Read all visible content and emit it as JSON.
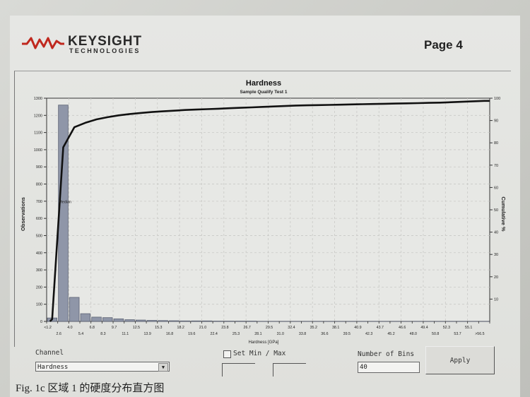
{
  "header": {
    "logo_main": "KEYSIGHT",
    "logo_sub": "TECHNOLOGIES",
    "page": "Page 4"
  },
  "colors": {
    "bar": "#8f96a8",
    "bar_dark": "#5c6273",
    "curve": "#111111",
    "grid": "#c9c9c6",
    "logo_red": "#c0281e"
  },
  "chart_data": {
    "type": "bar",
    "title": "Hardness",
    "subtitle": "Sample Qualify Test 1",
    "xlabel": "Hardness [GPa]",
    "ylabel": "Observations",
    "y2label": "Cumulative %",
    "ylim": [
      0,
      1300
    ],
    "y2lim": [
      0,
      100
    ],
    "yticks": [
      0,
      100,
      200,
      300,
      400,
      500,
      600,
      700,
      800,
      900,
      1000,
      1100,
      1200,
      1300
    ],
    "y2ticks": [
      10,
      20,
      30,
      40,
      50,
      60,
      70,
      80,
      90,
      100
    ],
    "xticks_upper": [
      "<1.2",
      "4.0",
      "6.8",
      "9.7",
      "12.5",
      "15.3",
      "18.2",
      "21.0",
      "23.8",
      "26.7",
      "29.5",
      "32.4",
      "35.2",
      "38.1",
      "40.9",
      "43.7",
      "46.6",
      "49.4",
      "52.3",
      "55.1"
    ],
    "xticks_lower": [
      "2.6",
      "5.4",
      "8.3",
      "11.1",
      "13.9",
      "16.8",
      "19.6",
      "22.4",
      "25.3",
      "28.1",
      "31.0",
      "33.8",
      "36.6",
      "39.5",
      "42.3",
      "45.2",
      "48.0",
      "50.8",
      "53.7",
      ">56.5"
    ],
    "bins": 40,
    "values": [
      20,
      1260,
      140,
      45,
      25,
      22,
      15,
      10,
      8,
      6,
      5,
      4,
      3,
      3,
      3,
      2,
      2,
      2,
      2,
      1,
      1,
      1,
      1,
      1,
      1,
      1,
      1,
      1,
      1,
      1,
      1,
      1,
      1,
      1,
      1,
      1,
      1,
      1,
      1,
      1
    ],
    "cumulative": [
      1,
      78,
      87,
      89,
      90.5,
      91.5,
      92.3,
      92.9,
      93.4,
      93.8,
      94.1,
      94.4,
      94.7,
      94.9,
      95.1,
      95.3,
      95.5,
      95.7,
      95.9,
      96.1,
      96.3,
      96.5,
      96.7,
      96.8,
      96.9,
      97.0,
      97.1,
      97.2,
      97.3,
      97.4,
      97.5,
      97.6,
      97.7,
      97.8,
      97.9,
      98.0,
      98.2,
      98.4,
      98.6,
      98.8
    ],
    "median_label": "Median",
    "grid": true
  },
  "controls": {
    "channel_label": "Channel",
    "channel_value": "Hardness",
    "setminmax_label": "Set Min / Max",
    "bins_label": "Number of Bins",
    "bins_value": "40",
    "apply_label": "Apply"
  },
  "caption": "Fig. 1c 区域 1 的硬度分布直方图"
}
